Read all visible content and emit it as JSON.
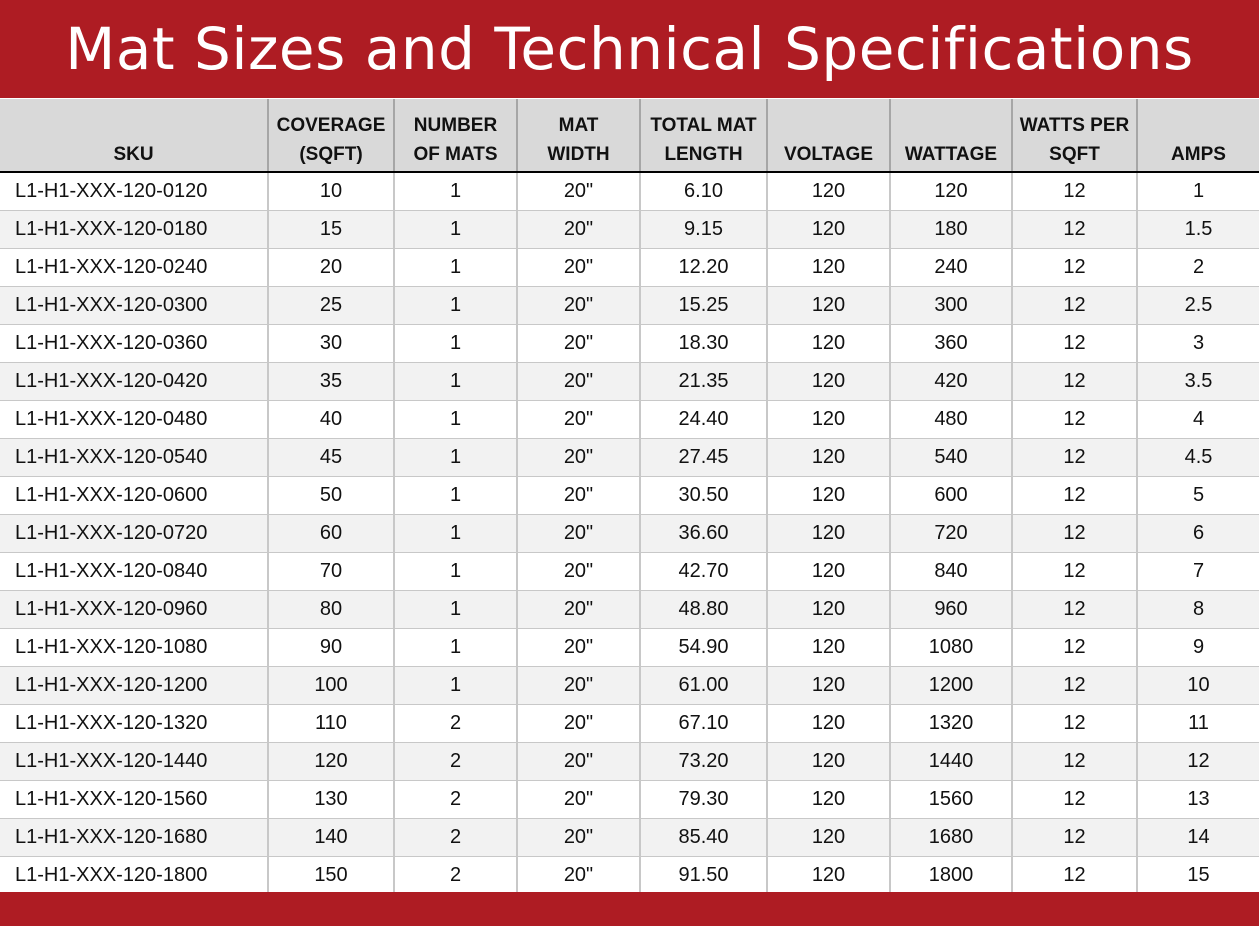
{
  "title": "Mat Sizes and Technical Specifications",
  "colors": {
    "brand_red": "#ae1c23",
    "header_gray": "#d9d9d9",
    "stripe": "#f2f2f2"
  },
  "table": {
    "headers": [
      [
        "SKU"
      ],
      [
        "COVERAGE",
        "(SQFT)"
      ],
      [
        "NUMBER",
        "OF MATS"
      ],
      [
        "MAT",
        "WIDTH"
      ],
      [
        "TOTAL MAT",
        "LENGTH"
      ],
      [
        "VOLTAGE"
      ],
      [
        "WATTAGE"
      ],
      [
        "WATTS PER",
        "SQFT"
      ],
      [
        "AMPS"
      ]
    ],
    "rows": [
      [
        "L1-H1-XXX-120-0120",
        "10",
        "1",
        "20\"",
        "6.10",
        "120",
        "120",
        "12",
        "1"
      ],
      [
        "L1-H1-XXX-120-0180",
        "15",
        "1",
        "20\"",
        "9.15",
        "120",
        "180",
        "12",
        "1.5"
      ],
      [
        "L1-H1-XXX-120-0240",
        "20",
        "1",
        "20\"",
        "12.20",
        "120",
        "240",
        "12",
        "2"
      ],
      [
        "L1-H1-XXX-120-0300",
        "25",
        "1",
        "20\"",
        "15.25",
        "120",
        "300",
        "12",
        "2.5"
      ],
      [
        "L1-H1-XXX-120-0360",
        "30",
        "1",
        "20\"",
        "18.30",
        "120",
        "360",
        "12",
        "3"
      ],
      [
        "L1-H1-XXX-120-0420",
        "35",
        "1",
        "20\"",
        "21.35",
        "120",
        "420",
        "12",
        "3.5"
      ],
      [
        "L1-H1-XXX-120-0480",
        "40",
        "1",
        "20\"",
        "24.40",
        "120",
        "480",
        "12",
        "4"
      ],
      [
        "L1-H1-XXX-120-0540",
        "45",
        "1",
        "20\"",
        "27.45",
        "120",
        "540",
        "12",
        "4.5"
      ],
      [
        "L1-H1-XXX-120-0600",
        "50",
        "1",
        "20\"",
        "30.50",
        "120",
        "600",
        "12",
        "5"
      ],
      [
        "L1-H1-XXX-120-0720",
        "60",
        "1",
        "20\"",
        "36.60",
        "120",
        "720",
        "12",
        "6"
      ],
      [
        "L1-H1-XXX-120-0840",
        "70",
        "1",
        "20\"",
        "42.70",
        "120",
        "840",
        "12",
        "7"
      ],
      [
        "L1-H1-XXX-120-0960",
        "80",
        "1",
        "20\"",
        "48.80",
        "120",
        "960",
        "12",
        "8"
      ],
      [
        "L1-H1-XXX-120-1080",
        "90",
        "1",
        "20\"",
        "54.90",
        "120",
        "1080",
        "12",
        "9"
      ],
      [
        "L1-H1-XXX-120-1200",
        "100",
        "1",
        "20\"",
        "61.00",
        "120",
        "1200",
        "12",
        "10"
      ],
      [
        "L1-H1-XXX-120-1320",
        "110",
        "2",
        "20\"",
        "67.10",
        "120",
        "1320",
        "12",
        "11"
      ],
      [
        "L1-H1-XXX-120-1440",
        "120",
        "2",
        "20\"",
        "73.20",
        "120",
        "1440",
        "12",
        "12"
      ],
      [
        "L1-H1-XXX-120-1560",
        "130",
        "2",
        "20\"",
        "79.30",
        "120",
        "1560",
        "12",
        "13"
      ],
      [
        "L1-H1-XXX-120-1680",
        "140",
        "2",
        "20\"",
        "85.40",
        "120",
        "1680",
        "12",
        "14"
      ],
      [
        "L1-H1-XXX-120-1800",
        "150",
        "2",
        "20\"",
        "91.50",
        "120",
        "1800",
        "12",
        "15"
      ]
    ]
  }
}
